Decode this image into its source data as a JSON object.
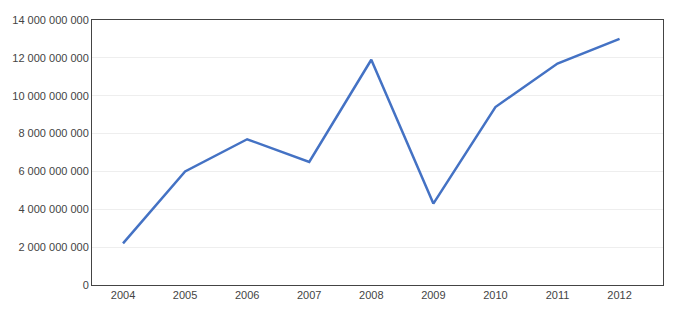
{
  "chart_data": {
    "type": "line",
    "x": [
      2004,
      2005,
      2006,
      2007,
      2008,
      2009,
      2010,
      2011,
      2012
    ],
    "values": [
      2200000000,
      6000000000,
      7700000000,
      6500000000,
      11900000000,
      4300000000,
      9400000000,
      11700000000,
      13000000000
    ],
    "color": "#4472C4",
    "xlim": [
      2003.5,
      2012.7
    ],
    "xticks": [
      2004,
      2005,
      2006,
      2007,
      2008,
      2009,
      2010,
      2011,
      2012
    ],
    "ylim": [
      0,
      14000000000
    ],
    "yticks": [
      0,
      {
        "value": 2000000000,
        "label": "2 000 000 000"
      },
      {
        "value": 4000000000,
        "label": "4 000 000 000"
      },
      {
        "value": 6000000000,
        "label": "6 000 000 000"
      },
      {
        "value": 8000000000,
        "label": "8 000 000 000"
      },
      {
        "value": 10000000000,
        "label": "10 000 000 000"
      },
      {
        "value": 12000000000,
        "label": "12 000 000 000"
      },
      {
        "value": 14000000000,
        "label": "14 000 000 000"
      }
    ],
    "grid": "y"
  }
}
